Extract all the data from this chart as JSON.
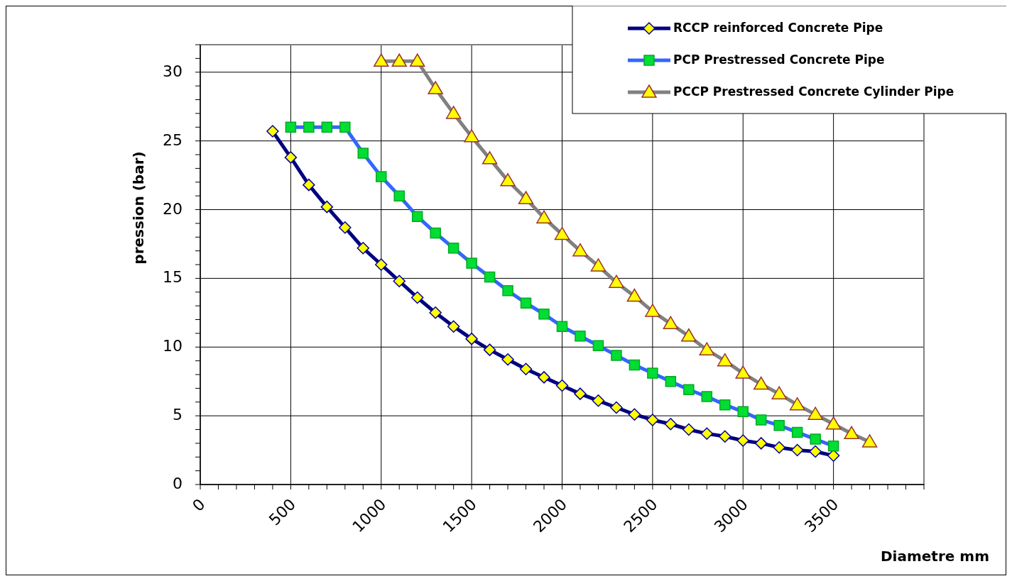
{
  "chart_data": {
    "type": "line",
    "xlabel": "Diametre mm",
    "ylabel": "pression (bar)",
    "xlim": [
      0,
      4000
    ],
    "xticks": [
      0,
      500,
      1000,
      1500,
      2000,
      2500,
      3000,
      3500,
      {
        "value": 4000,
        "label": null
      }
    ],
    "ylim": [
      0,
      32
    ],
    "yticks": [
      0,
      5,
      10,
      15,
      20,
      25,
      30
    ],
    "grid": true,
    "legend": "top right",
    "line_style": "solid",
    "series": [
      {
        "name": "RCCP reinforced Concrete Pipe",
        "color": "#000080",
        "marker": "diamond",
        "x": [
          400,
          500,
          600,
          700,
          800,
          900,
          1000,
          1100,
          1200,
          1300,
          1400,
          1500,
          1600,
          1700,
          1800,
          1900,
          2000,
          2100,
          2200,
          2300,
          2400,
          2500,
          2600,
          2700,
          2800,
          2900,
          3000,
          3100,
          3200,
          3300,
          3400,
          3500
        ],
        "values": [
          25.7,
          23.8,
          21.8,
          20.2,
          18.7,
          17.2,
          16.0,
          14.8,
          13.6,
          12.5,
          11.5,
          10.6,
          9.8,
          9.1,
          8.4,
          7.8,
          7.2,
          6.6,
          6.1,
          5.6,
          5.1,
          4.7,
          4.4,
          4.0,
          3.7,
          3.5,
          3.2,
          3.0,
          2.7,
          2.5,
          2.4,
          2.1
        ]
      },
      {
        "name": "PCP Prestressed Concrete Pipe",
        "color": "#3366ff",
        "marker": "square",
        "x": [
          500,
          600,
          700,
          800,
          900,
          1000,
          1100,
          1200,
          1300,
          1400,
          1500,
          1600,
          1700,
          1800,
          1900,
          2000,
          2100,
          2200,
          2300,
          2400,
          2500,
          2600,
          2700,
          2800,
          2900,
          3000,
          3100,
          3200,
          3300,
          3400,
          3500
        ],
        "values": [
          26.0,
          26.0,
          26.0,
          26.0,
          24.1,
          22.4,
          21.0,
          19.5,
          18.3,
          17.2,
          16.1,
          15.1,
          14.1,
          13.2,
          12.4,
          11.5,
          10.8,
          10.1,
          9.4,
          8.7,
          8.1,
          7.5,
          6.9,
          6.4,
          5.8,
          5.3,
          4.7,
          4.3,
          3.8,
          3.3,
          2.8
        ]
      },
      {
        "name": "PCCP Prestressed Concrete Cylinder Pipe",
        "color": "#808080",
        "marker": "triangle",
        "x": [
          1000,
          1100,
          1200,
          1300,
          1400,
          1500,
          1600,
          1700,
          1800,
          1900,
          2000,
          2100,
          2200,
          2300,
          2400,
          2500,
          2600,
          2700,
          2800,
          2900,
          3000,
          3100,
          3200,
          3300,
          3400,
          3500,
          3600,
          3700
        ],
        "values": [
          30.8,
          30.8,
          30.8,
          28.8,
          27.0,
          25.3,
          23.7,
          22.1,
          20.8,
          19.4,
          18.2,
          17.0,
          15.9,
          14.7,
          13.7,
          12.6,
          11.7,
          10.8,
          9.8,
          9.0,
          8.1,
          7.3,
          6.6,
          5.8,
          5.1,
          4.4,
          3.7,
          3.1
        ]
      }
    ]
  }
}
